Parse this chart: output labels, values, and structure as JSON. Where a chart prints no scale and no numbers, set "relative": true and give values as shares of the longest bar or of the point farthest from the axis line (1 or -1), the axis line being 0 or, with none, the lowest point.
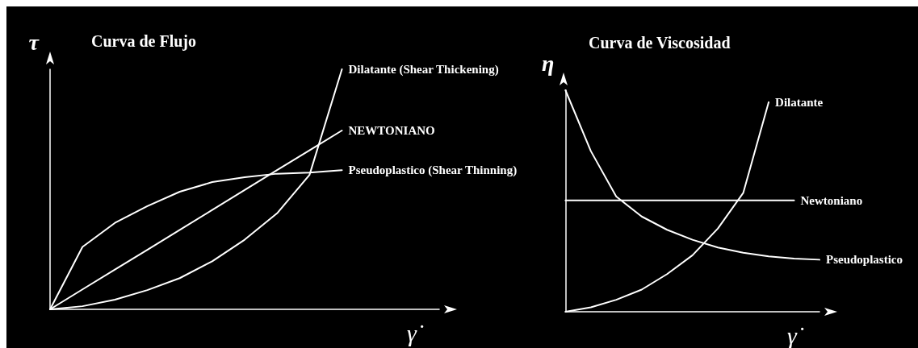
{
  "chart_data": [
    {
      "type": "line",
      "title": "Curva de Flujo",
      "xlabel": "γ̇",
      "ylabel": "τ",
      "relative": true,
      "marker": "none",
      "line_style": "solid",
      "categories": [
        null,
        null,
        null,
        null,
        null,
        null,
        null,
        null,
        null,
        null,
        null,
        null,
        null
      ],
      "series": [
        {
          "name": "Dilatante (Shear Thickening)",
          "color": "#ffffff",
          "values": [
            0,
            0.013,
            0.04,
            0.08,
            0.13,
            0.2,
            0.29,
            0.4,
            0.56,
            1,
            null,
            null,
            null
          ]
        },
        {
          "name": "NEWTONIANO",
          "color": "#ffffff",
          "values": [
            0,
            0.083,
            0.166,
            0.248,
            0.331,
            0.414,
            0.497,
            0.58,
            0.662,
            0.745,
            null,
            null,
            null
          ]
        },
        {
          "name": "Pseudoplastico (Shear Thinning)",
          "color": "#ffffff",
          "values": [
            0,
            0.26,
            0.36,
            0.43,
            0.49,
            0.53,
            0.55,
            0.565,
            0.57,
            0.58,
            null,
            null,
            null
          ]
        }
      ]
    },
    {
      "type": "line",
      "title": "Curva de Viscosidad",
      "xlabel": "γ̇",
      "ylabel": "η",
      "relative": true,
      "marker": "none",
      "line_style": "solid",
      "categories": [
        null,
        null,
        null,
        null,
        null,
        null,
        null,
        null,
        null,
        null,
        null
      ],
      "series": [
        {
          "name": "Dilatante",
          "color": "#ffffff",
          "values": [
            0,
            0.02,
            0.054,
            0.1,
            0.17,
            0.255,
            0.376,
            0.537,
            0.946,
            null,
            null
          ]
        },
        {
          "name": "Newtoniano",
          "color": "#ffffff",
          "values": [
            0.503,
            0.503,
            0.503,
            0.503,
            0.503,
            0.503,
            0.503,
            0.503,
            0.503,
            0.503,
            null
          ]
        },
        {
          "name": "Pseudoplastico",
          "color": "#ffffff",
          "values": [
            1,
            0.725,
            0.52,
            0.43,
            0.37,
            0.325,
            0.29,
            0.266,
            0.25,
            0.24,
            0.235
          ]
        }
      ]
    }
  ]
}
